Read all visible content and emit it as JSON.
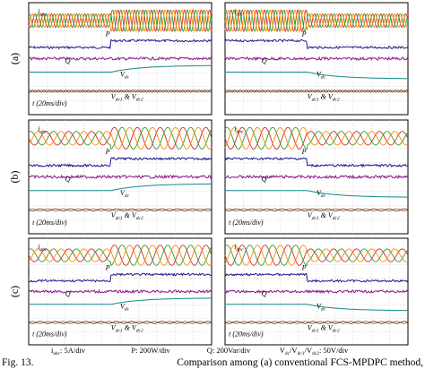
{
  "rows": [
    {
      "label": "(a)",
      "panels": [
        {
          "labels": [
            [
              "i",
              {
                "sub": "abc"
              }
            ],
            [
              "P"
            ],
            [
              "Q"
            ],
            [
              "V",
              {
                "sub": "dc"
              }
            ],
            [
              "V",
              {
                "sub": "dc1"
              },
              " & V",
              {
                "sub": "dc2"
              }
            ],
            [
              "t",
              " (20ms/div)"
            ]
          ]
        },
        {
          "labels": [
            [
              "i",
              {
                "sub": "abc"
              }
            ],
            [
              "P"
            ],
            [
              "Q"
            ],
            [
              "V",
              {
                "sub": "dc"
              }
            ],
            [
              "V",
              {
                "sub": "dc1"
              },
              " & V",
              {
                "sub": "dc2"
              }
            ]
          ]
        }
      ]
    },
    {
      "label": "(b)",
      "panels": [
        {
          "labels": [
            [
              "i",
              {
                "sub": "abc"
              }
            ],
            [
              "P"
            ],
            [
              "Q"
            ],
            [
              "V",
              {
                "sub": "dc"
              }
            ],
            [
              "V",
              {
                "sub": "dc1"
              },
              " & V",
              {
                "sub": "dc2"
              }
            ],
            [
              "t",
              " (20ms/div)"
            ]
          ]
        },
        {
          "labels": [
            [
              "i",
              {
                "sub": "abc"
              }
            ],
            [
              "P"
            ],
            [
              "Q"
            ],
            [
              "V",
              {
                "sub": "dc"
              }
            ],
            [
              "V",
              {
                "sub": "dc1"
              },
              " & V",
              {
                "sub": "dc2"
              }
            ],
            [
              "t",
              " (20ms/div)"
            ]
          ]
        }
      ]
    },
    {
      "label": "(c)",
      "panels": [
        {
          "labels": [
            [
              "i",
              {
                "sub": "abc"
              }
            ],
            [
              "P"
            ],
            [
              "Q"
            ],
            [
              "V",
              {
                "sub": "dc"
              }
            ],
            [
              "V",
              {
                "sub": "dc1"
              },
              " & V",
              {
                "sub": "dc2"
              }
            ],
            [
              "t",
              " (20ms/div)"
            ]
          ]
        },
        {
          "labels": [
            [
              "i",
              {
                "sub": "abc"
              }
            ],
            [
              "P"
            ],
            [
              "Q"
            ],
            [
              "V",
              {
                "sub": "dc"
              }
            ],
            [
              "V",
              {
                "sub": "dc1"
              },
              " & V",
              {
                "sub": "dc2"
              }
            ],
            [
              "t",
              " (20ms/div)"
            ]
          ]
        }
      ]
    }
  ],
  "legend": [
    [
      "i",
      {
        "sub": "abc"
      },
      ": 5A/div"
    ],
    [
      "P",
      ": 200W/div"
    ],
    [
      "Q",
      ": 200Var/div"
    ],
    [
      "V",
      {
        "sub": "dc"
      },
      "/V",
      {
        "sub": "dc1"
      },
      "/V",
      {
        "sub": "dc2"
      },
      ": 50V/div"
    ]
  ],
  "caption": {
    "number": "Fig. 13.",
    "text": "Comparison among (a) conventional FCS-MPDPC method,"
  }
}
